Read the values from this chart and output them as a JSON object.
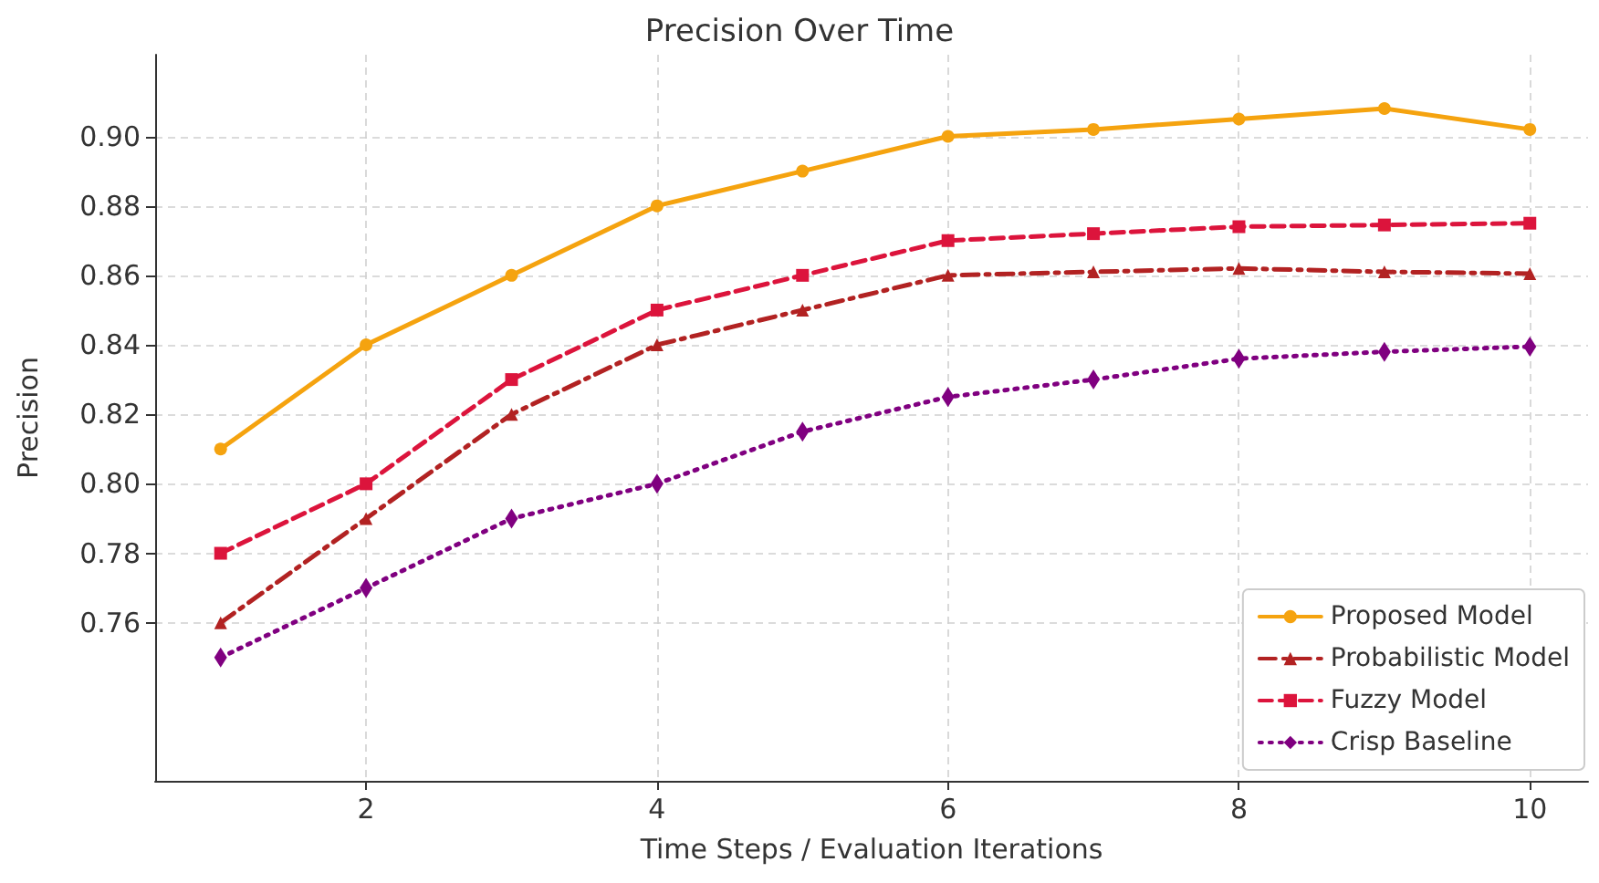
{
  "chart_data": {
    "type": "line",
    "title": "Precision Over Time",
    "xlabel": "Time Steps / Evaluation Iterations",
    "ylabel": "Precision",
    "x": [
      1,
      2,
      3,
      4,
      5,
      6,
      7,
      8,
      9,
      10
    ],
    "series": [
      {
        "name": "Proposed Model",
        "color": "#f5a30f",
        "marker": "circle",
        "line_style": "solid",
        "values": [
          0.81,
          0.84,
          0.86,
          0.88,
          0.89,
          0.9,
          0.902,
          0.905,
          0.908,
          0.902
        ]
      },
      {
        "name": "Probabilistic Model",
        "color": "#b22222",
        "marker": "triangle",
        "line_style": "dashdot",
        "values": [
          0.76,
          0.79,
          0.82,
          0.84,
          0.85,
          0.86,
          0.861,
          0.862,
          0.861,
          0.8605
        ]
      },
      {
        "name": "Fuzzy Model",
        "color": "#dc143c",
        "marker": "square",
        "line_style": "dashed",
        "values": [
          0.78,
          0.8,
          0.83,
          0.85,
          0.86,
          0.87,
          0.872,
          0.874,
          0.8745,
          0.875
        ]
      },
      {
        "name": "Crisp Baseline",
        "color": "#800080",
        "marker": "diamond",
        "line_style": "dotted",
        "values": [
          0.75,
          0.77,
          0.79,
          0.8,
          0.815,
          0.825,
          0.83,
          0.836,
          0.838,
          0.8395
        ]
      }
    ],
    "xlim": [
      0.55,
      10.4
    ],
    "xticks": [
      2,
      4,
      6,
      8,
      10
    ],
    "ylim": [
      0.7145,
      0.9235
    ],
    "yticks": [
      0.76,
      0.78,
      {
        "value": 0.8,
        "label": "0.80"
      },
      0.82,
      0.84,
      0.86,
      0.88,
      {
        "value": 0.9,
        "label": "0.90"
      }
    ],
    "grid": true,
    "legend": "bottom right"
  }
}
